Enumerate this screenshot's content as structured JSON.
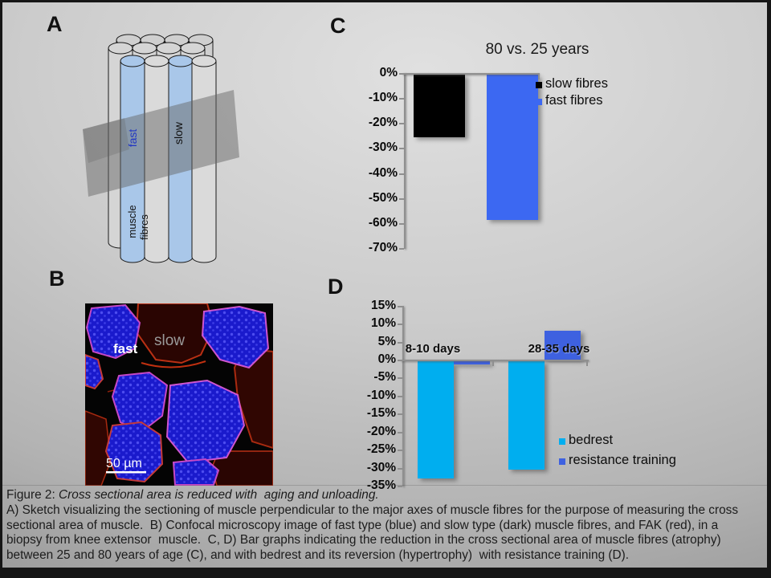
{
  "slide": {
    "frame_color": "#161616",
    "background_light": "#e0e0e0",
    "background_dark": "#929292"
  },
  "panels": {
    "a": {
      "letter": "A",
      "labels": {
        "fast": "fast",
        "slow": "slow",
        "muscle_line1": "muscle",
        "muscle_line2": "fibres"
      },
      "colors": {
        "fibre_blue": "#a9c7e9",
        "fibre_grey": "#d5d5d5",
        "plane_grey": "#696969",
        "fast_text": "#2136c4",
        "slow_text": "#111111"
      }
    },
    "b": {
      "letter": "B",
      "labels": {
        "fast": "fast",
        "slow": "slow",
        "scale_bar": "50 µm"
      },
      "colors": {
        "fast_fibre_blue": "#1a1acc",
        "slow_fibre_dark": "#2a0502",
        "fak_red": "#b93014",
        "rim_pink": "#c648c6",
        "background": "#040404"
      }
    },
    "c": {
      "letter": "C"
    },
    "d": {
      "letter": "D"
    }
  },
  "caption": {
    "prefix": "Figure 2: ",
    "italic": "Cross sectional area is reduced with  aging and unloading.",
    "lines": [
      "A) Sketch visualizing the sectioning of muscle perpendicular to the major axes of muscle fibres for the purpose of measuring the cross",
      "sectional area of muscle.  B) Confocal microscopy image of fast type (blue) and slow type (dark) muscle fibres, and FAK (red), in a",
      "biopsy from knee extensor  muscle.  C, D) Bar graphs indicating the reduction in the cross sectional area of muscle fibres (atrophy)",
      "between 25 and 80 years of age (C), and with bedrest and its reversion (hypertrophy)  with resistance training (D)."
    ]
  },
  "chart_data": [
    {
      "id": "age-comparison",
      "type": "bar",
      "title": "80 vs. 25 years",
      "categories": [
        ""
      ],
      "series": [
        {
          "name": "slow fibres",
          "values": [
            -25
          ],
          "color": "#000000"
        },
        {
          "name": "fast fibres",
          "values": [
            -58
          ],
          "color": "#3c68f2"
        }
      ],
      "ylim": [
        -70,
        0
      ],
      "ytick_labels": [
        "0%",
        "-10%",
        "-20%",
        "-30%",
        "-40%",
        "-50%",
        "-60%",
        "-70%"
      ],
      "ytick_values": [
        0,
        -10,
        -20,
        -30,
        -40,
        -50,
        -60,
        -70
      ],
      "grid": false,
      "legend_position": "right"
    },
    {
      "id": "bedrest-training",
      "type": "bar",
      "title": "",
      "categories": [
        "8-10 days",
        "28-35 days"
      ],
      "series": [
        {
          "name": "bedrest",
          "values": [
            -32.5,
            -30
          ],
          "color": "#00aeef"
        },
        {
          "name": "resistance training",
          "values": [
            -1,
            8
          ],
          "color": "#3e61e0"
        }
      ],
      "ylim": [
        -35,
        15
      ],
      "ytick_labels": [
        "15%",
        "10%",
        "5%",
        "0%",
        "-5%",
        "-10%",
        "-15%",
        "-20%",
        "-25%",
        "-30%",
        "-35%"
      ],
      "ytick_values": [
        15,
        10,
        5,
        0,
        -5,
        -10,
        -15,
        -20,
        -25,
        -30,
        -35
      ],
      "grid": false,
      "legend_position": "right"
    }
  ]
}
